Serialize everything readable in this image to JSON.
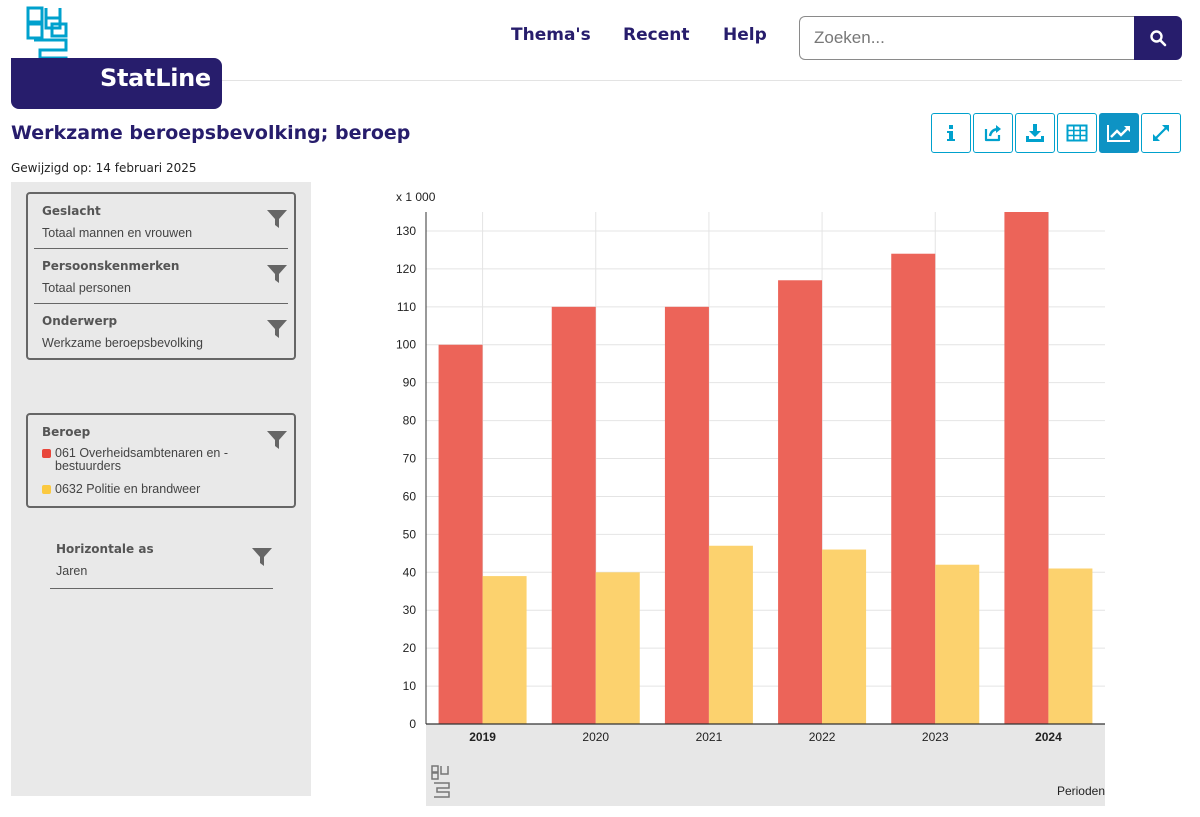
{
  "header": {
    "product_name": "StatLine",
    "nav": [
      "Thema's",
      "Recent",
      "Help"
    ],
    "search_placeholder": "Zoeken..."
  },
  "page": {
    "title": "Werkzame beroepsbevolking; beroep",
    "modified": "Gewijzigd op: 14 februari 2025"
  },
  "toolbar": {
    "buttons": [
      "info-icon",
      "share-icon",
      "download-icon",
      "table-icon",
      "chart-icon",
      "fullscreen-icon"
    ],
    "active": "chart-icon"
  },
  "filters": {
    "geslacht": {
      "name": "Geslacht",
      "value": "Totaal mannen en vrouwen"
    },
    "persoonskenmerken": {
      "name": "Persoonskenmerken",
      "value": "Totaal personen"
    },
    "onderwerp": {
      "name": "Onderwerp",
      "value": "Werkzame beroepsbevolking"
    },
    "beroep": {
      "name": "Beroep",
      "items": [
        {
          "label": "061 Overheidsambtenaren en - bestuurders",
          "color": "#e8463a"
        },
        {
          "label": "0632 Politie en brandweer",
          "color": "#fbc940"
        }
      ]
    },
    "horizontale_as": {
      "name": "Horizontale as",
      "value": "Jaren"
    }
  },
  "chart_data": {
    "type": "bar",
    "unit_label": "x 1 000",
    "xlabel": "Perioden",
    "categories": [
      "2019",
      "2020",
      "2021",
      "2022",
      "2023",
      "2024"
    ],
    "bold_categories": [
      "2019",
      "2024"
    ],
    "series": [
      {
        "name": "061 Overheidsambtenaren en - bestuurders",
        "color": "#ec6459",
        "values": [
          100,
          110,
          110,
          117,
          124,
          135
        ]
      },
      {
        "name": "0632 Politie en brandweer",
        "color": "#fcd26e",
        "values": [
          39,
          40,
          47,
          46,
          42,
          41
        ]
      }
    ],
    "ylim": [
      0,
      135
    ],
    "yticks": [
      0,
      10,
      20,
      30,
      40,
      50,
      60,
      70,
      80,
      90,
      100,
      110,
      120,
      130
    ],
    "grid": true
  }
}
